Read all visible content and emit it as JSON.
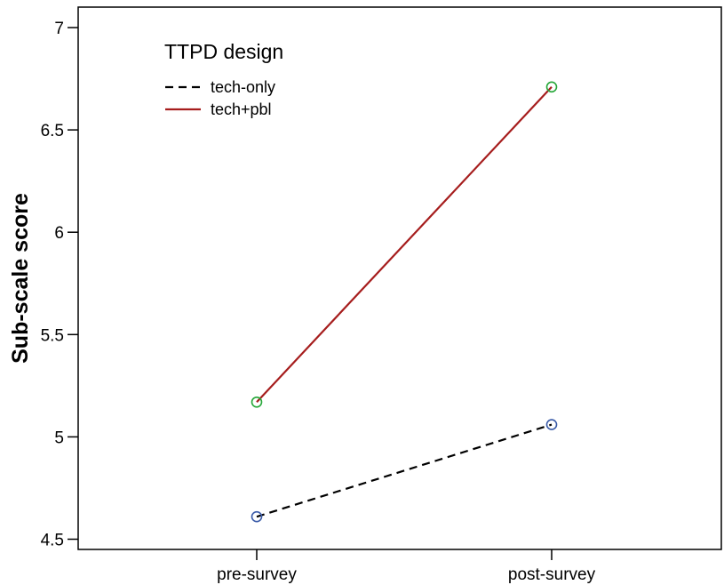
{
  "chart_data": {
    "type": "line",
    "categories": [
      "pre-survey",
      "post-survey"
    ],
    "ylabel": "Sub-scale score",
    "ylim": [
      4.45,
      7.1
    ],
    "yticks": [
      4.5,
      5,
      5.5,
      6,
      6.5,
      7
    ],
    "ytick_labels": [
      "4.5",
      "5",
      "5.5",
      "6",
      "6.5",
      "7"
    ],
    "legend": {
      "title": "TTPD design",
      "position": "top-left"
    },
    "series": [
      {
        "name": "tech-only",
        "values": [
          4.61,
          5.06
        ],
        "line_color": "#000000",
        "marker_color": "#3a5ba8",
        "dashed": true
      },
      {
        "name": "tech+pbl",
        "values": [
          5.17,
          6.71
        ],
        "line_color": "#a61d1d",
        "marker_color": "#27a83a",
        "dashed": false
      }
    ]
  }
}
